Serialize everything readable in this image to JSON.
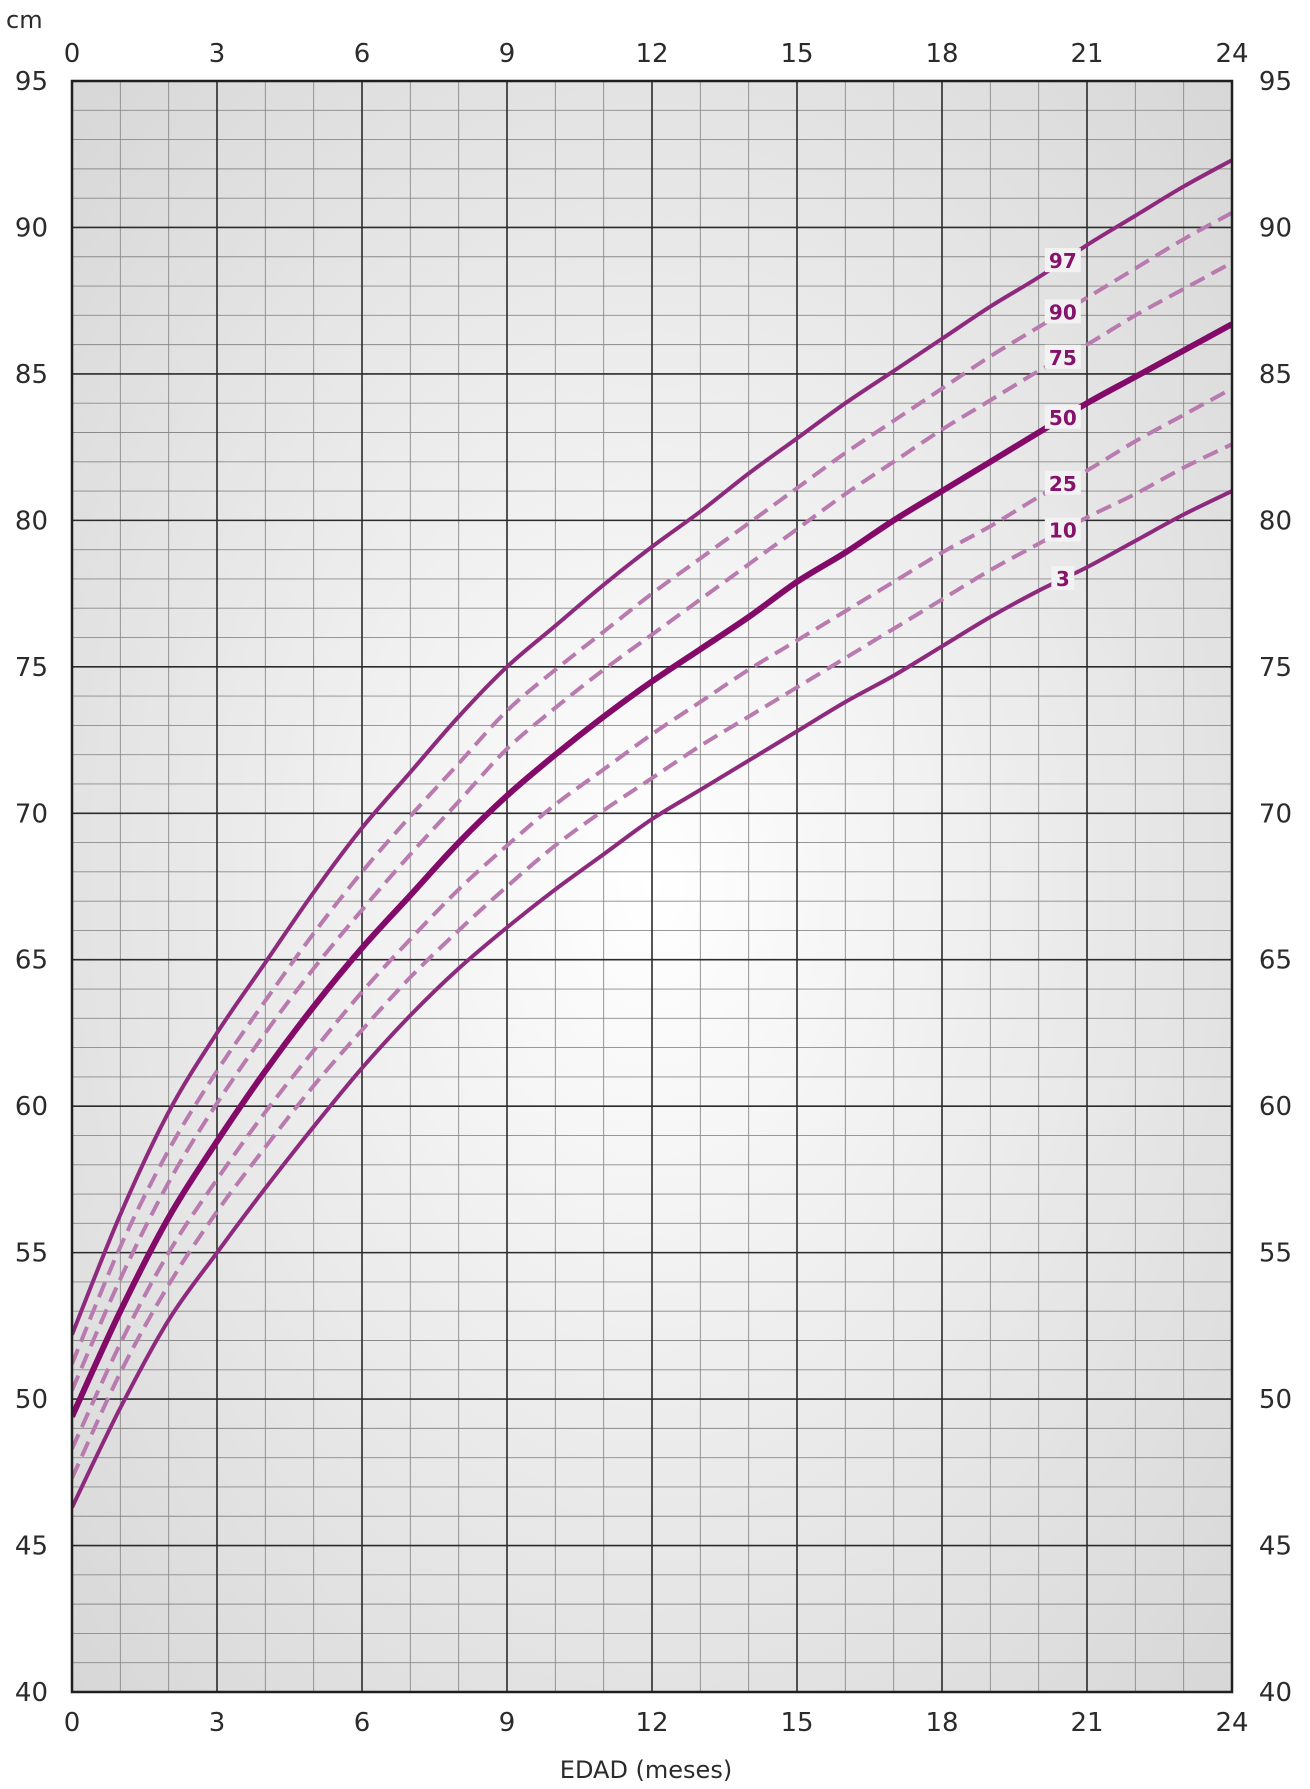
{
  "chart_data": {
    "type": "line",
    "ylabel": "cm",
    "xlabel": "EDAD (meses)",
    "xlim": [
      0,
      24
    ],
    "ylim": [
      40,
      95
    ],
    "x_ticks": [
      0,
      3,
      6,
      9,
      12,
      15,
      18,
      21,
      24
    ],
    "y_ticks": [
      40,
      45,
      50,
      55,
      60,
      65,
      70,
      75,
      80,
      85,
      90,
      95
    ],
    "x_tick_labels": [
      "0",
      "3",
      "6",
      "9",
      "12",
      "15",
      "18",
      "21",
      "24"
    ],
    "y_tick_labels": [
      "40",
      "45",
      "50",
      "55",
      "60",
      "65",
      "70",
      "75",
      "80",
      "85",
      "90",
      "95"
    ],
    "grid": true,
    "minor_grid": {
      "x_step": 1,
      "y_step": 1
    },
    "x": [
      0,
      1,
      2,
      3,
      4,
      5,
      6,
      7,
      8,
      9,
      10,
      11,
      12,
      13,
      14,
      15,
      16,
      17,
      18,
      19,
      20,
      21,
      22,
      23,
      24
    ],
    "series": [
      {
        "name": "97",
        "style": "solid",
        "weight": "normal",
        "values": [
          52.2,
          56.3,
          59.8,
          62.5,
          64.9,
          67.3,
          69.5,
          71.4,
          73.3,
          75.0,
          76.4,
          77.8,
          79.1,
          80.3,
          81.6,
          82.8,
          84.0,
          85.1,
          86.2,
          87.3,
          88.3,
          89.4,
          90.4,
          91.4,
          92.3
        ]
      },
      {
        "name": "90",
        "style": "dashed",
        "weight": "normal",
        "values": [
          51.2,
          55.2,
          58.5,
          61.2,
          63.6,
          65.9,
          68.0,
          69.9,
          71.7,
          73.5,
          74.9,
          76.2,
          77.5,
          78.7,
          79.9,
          81.1,
          82.3,
          83.4,
          84.5,
          85.6,
          86.6,
          87.6,
          88.6,
          89.6,
          90.5
        ]
      },
      {
        "name": "75",
        "style": "dashed",
        "weight": "normal",
        "values": [
          50.3,
          54.1,
          57.4,
          60.1,
          62.5,
          64.7,
          66.7,
          68.6,
          70.4,
          72.2,
          73.6,
          74.9,
          76.1,
          77.3,
          78.5,
          79.7,
          80.9,
          82.0,
          83.1,
          84.1,
          85.1,
          86.0,
          87.0,
          87.9,
          88.8
        ]
      },
      {
        "name": "50",
        "style": "solid",
        "weight": "bold",
        "values": [
          49.4,
          53.0,
          56.2,
          58.8,
          61.2,
          63.4,
          65.4,
          67.2,
          69.0,
          70.6,
          72.0,
          73.3,
          74.5,
          75.6,
          76.7,
          77.9,
          78.9,
          80.0,
          81.0,
          82.0,
          83.0,
          84.0,
          84.9,
          85.8,
          86.7
        ]
      },
      {
        "name": "25",
        "style": "dashed",
        "weight": "normal",
        "values": [
          48.3,
          51.9,
          55.0,
          57.5,
          59.8,
          61.9,
          63.9,
          65.7,
          67.4,
          68.9,
          70.3,
          71.5,
          72.7,
          73.8,
          74.9,
          75.9,
          76.9,
          77.9,
          78.9,
          79.8,
          80.8,
          81.7,
          82.7,
          83.6,
          84.5
        ]
      },
      {
        "name": "10",
        "style": "dashed",
        "weight": "normal",
        "values": [
          47.3,
          50.9,
          53.9,
          56.4,
          58.6,
          60.7,
          62.6,
          64.4,
          66.0,
          67.5,
          68.9,
          70.1,
          71.2,
          72.3,
          73.3,
          74.3,
          75.3,
          76.3,
          77.3,
          78.3,
          79.2,
          80.1,
          80.9,
          81.8,
          82.6
        ]
      },
      {
        "name": "3",
        "style": "solid",
        "weight": "normal",
        "values": [
          46.3,
          49.7,
          52.7,
          55.0,
          57.2,
          59.3,
          61.3,
          63.1,
          64.7,
          66.1,
          67.4,
          68.6,
          69.8,
          70.8,
          71.8,
          72.8,
          73.8,
          74.7,
          75.7,
          76.7,
          77.6,
          78.4,
          79.3,
          80.2,
          81.0
        ]
      }
    ],
    "series_label_x": 20.5,
    "colors": {
      "solid_line": "#8e2a7d",
      "bold_line": "#830a68",
      "dashed_line": "#b97ab0",
      "label": "#86136b",
      "major_grid": "#2b2b2b",
      "minor_grid": "#8a8a8a",
      "frame": "#1f1f1f",
      "bg_center": "#ffffff",
      "bg_edge": "#d6d6d6"
    }
  }
}
